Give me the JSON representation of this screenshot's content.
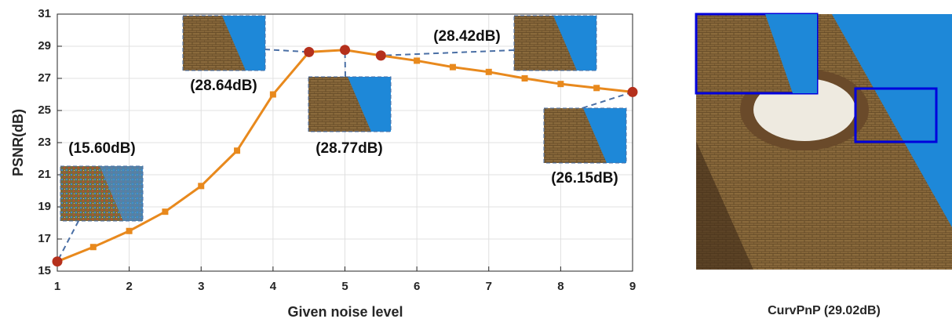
{
  "chart_data": {
    "type": "line",
    "x": [
      1,
      1.5,
      2,
      2.5,
      3,
      3.5,
      4,
      4.5,
      5,
      5.5,
      6,
      6.5,
      7,
      7.5,
      8,
      8.5,
      9
    ],
    "series": [
      {
        "color": "#e8891d",
        "values": [
          15.6,
          16.5,
          17.5,
          18.7,
          20.3,
          22.5,
          26.0,
          28.64,
          28.77,
          28.42,
          28.1,
          27.7,
          27.4,
          27.0,
          26.65,
          26.4,
          26.15
        ]
      }
    ],
    "highlight_color": "#b5301c",
    "xlim": [
      1,
      9
    ],
    "xticks": [
      1,
      2,
      3,
      4,
      5,
      6,
      7,
      8,
      9
    ],
    "ylim": [
      15,
      31
    ],
    "yticks": [
      15,
      17,
      19,
      21,
      23,
      25,
      27,
      29,
      31
    ],
    "grid": true,
    "x_label": "Given noise level",
    "y_label": "PSNR(dB)",
    "annotations": [
      "(15.60dB)",
      "(28.64dB)",
      "(28.77dB)",
      "(28.42dB)",
      "(26.15dB)"
    ],
    "image_caption": "CurvPnP (29.02dB)"
  }
}
